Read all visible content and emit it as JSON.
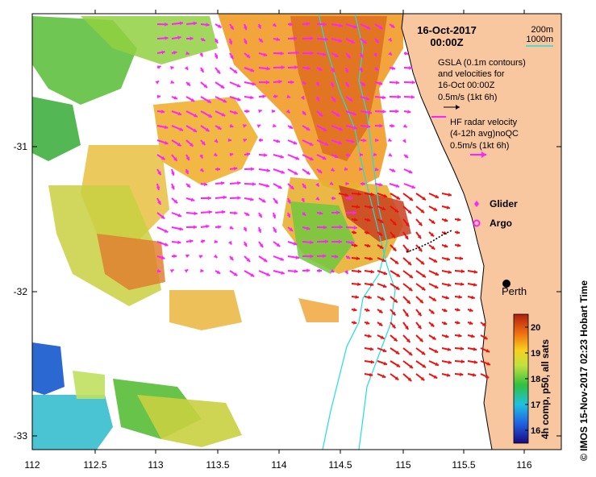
{
  "title": {
    "date": "16-Oct-2017",
    "time": "00:00Z"
  },
  "scale": {
    "a": "200m",
    "b": "1000m"
  },
  "legend": {
    "gsla_lines": [
      "GSLA (0.1m contours)",
      "and velocities for",
      "16-Oct 00:00Z",
      "0.5m/s (1kt 6h)"
    ],
    "hf_lines": [
      "HF radar velocity",
      "(4-12h avg)noQC",
      "0.5m/s (1kt 6h)"
    ],
    "glider": "Glider",
    "argo": "Argo"
  },
  "city": "Perth",
  "axes": {
    "x_ticks": [
      "112",
      "112.5",
      "113",
      "113.5",
      "114",
      "114.5",
      "115",
      "115.5",
      "116"
    ],
    "y_ticks": [
      "-31",
      "-32",
      "-33"
    ]
  },
  "colorbar": {
    "label": "4h comp, p50, all sats",
    "ticks": [
      "16",
      "17",
      "18",
      "19",
      "20"
    ],
    "min": 15.5,
    "max": 20.5
  },
  "credit": "© IMOS 15-Nov-2017 02:23 Hobart Time",
  "colors": {
    "land": "#f9c79f",
    "hf_arrow": "#ff22ff",
    "gsla_arrow": "#ee1111",
    "isobath": "#22dddd"
  }
}
